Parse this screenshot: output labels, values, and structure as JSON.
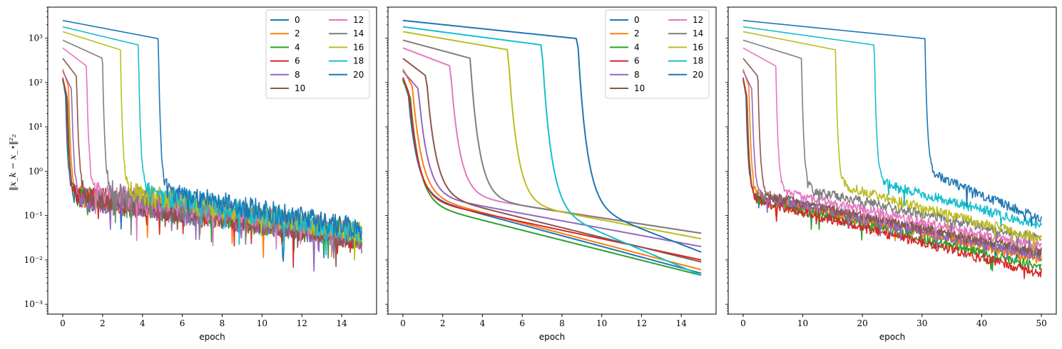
{
  "figure": {
    "ylabel": "‖x_k − x_⋆‖²₂",
    "yscale": "log",
    "ylim": [
      0.0006,
      5000
    ],
    "y_ticks": [
      0.001,
      0.01,
      0.1,
      1,
      10,
      100,
      1000
    ],
    "y_tick_labels": [
      "10⁻³",
      "10⁻²",
      "10⁻¹",
      "10⁰",
      "10¹",
      "10²",
      "10³"
    ]
  },
  "legend_entries": [
    "0",
    "2",
    "4",
    "6",
    "8",
    "10",
    "12",
    "14",
    "16",
    "18",
    "20"
  ],
  "series_colors": [
    "#1f77b4",
    "#ff7f0e",
    "#2ca02c",
    "#d62728",
    "#9467bd",
    "#8c564b",
    "#e377c2",
    "#7f7f7f",
    "#bcbd22",
    "#17becf",
    "#1f77b4"
  ],
  "chart_data": [
    {
      "type": "line",
      "xlabel": "epoch",
      "xlim": [
        -0.75,
        15.75
      ],
      "x_ticks": [
        0,
        2,
        4,
        6,
        8,
        10,
        12,
        14
      ],
      "legend": "top-right",
      "series": [
        {
          "name": "0",
          "initial": 120,
          "drop_epoch": 0.15,
          "final_low": 0.3,
          "final_high": 0.03
        },
        {
          "name": "2",
          "initial": 200,
          "drop_epoch": 0.3,
          "final_low": 0.3,
          "final_high": 0.03
        },
        {
          "name": "4",
          "initial": 110,
          "drop_epoch": 0.25,
          "final_low": 0.25,
          "final_high": 0.03
        },
        {
          "name": "6",
          "initial": 130,
          "drop_epoch": 0.2,
          "final_low": 0.3,
          "final_high": 0.03
        },
        {
          "name": "8",
          "initial": 180,
          "drop_epoch": 0.45,
          "final_low": 0.25,
          "final_high": 0.03
        },
        {
          "name": "10",
          "initial": 350,
          "drop_epoch": 0.7,
          "final_low": 0.3,
          "final_high": 0.03
        },
        {
          "name": "12",
          "initial": 600,
          "drop_epoch": 1.2,
          "final_low": 0.35,
          "final_high": 0.04
        },
        {
          "name": "14",
          "initial": 900,
          "drop_epoch": 2.0,
          "final_low": 0.35,
          "final_high": 0.04
        },
        {
          "name": "16",
          "initial": 1400,
          "drop_epoch": 2.9,
          "final_low": 0.35,
          "final_high": 0.04
        },
        {
          "name": "18",
          "initial": 1800,
          "drop_epoch": 3.8,
          "final_low": 0.35,
          "final_high": 0.04
        },
        {
          "name": "20",
          "initial": 2500,
          "drop_epoch": 4.8,
          "final_low": 0.35,
          "final_high": 0.05
        }
      ]
    },
    {
      "type": "line",
      "xlabel": "epoch",
      "xlim": [
        -0.75,
        15.75
      ],
      "x_ticks": [
        0,
        2,
        4,
        6,
        8,
        10,
        12,
        14
      ],
      "legend": "top-right",
      "series": [
        {
          "name": "0",
          "initial": 120,
          "drop_epoch": 0.3,
          "final_low": 0.3,
          "final_high": 0.005
        },
        {
          "name": "2",
          "initial": 200,
          "drop_epoch": 0.5,
          "final_low": 0.3,
          "final_high": 0.006
        },
        {
          "name": "4",
          "initial": 110,
          "drop_epoch": 0.4,
          "final_low": 0.2,
          "final_high": 0.0045
        },
        {
          "name": "6",
          "initial": 130,
          "drop_epoch": 0.35,
          "final_low": 0.25,
          "final_high": 0.01
        },
        {
          "name": "8",
          "initial": 180,
          "drop_epoch": 0.8,
          "final_low": 0.3,
          "final_high": 0.02
        },
        {
          "name": "10",
          "initial": 350,
          "drop_epoch": 1.2,
          "final_low": 0.3,
          "final_high": 0.009
        },
        {
          "name": "12",
          "initial": 600,
          "drop_epoch": 2.4,
          "final_low": 0.3,
          "final_high": 0.04
        },
        {
          "name": "14",
          "initial": 900,
          "drop_epoch": 3.4,
          "final_low": 0.25,
          "final_high": 0.04
        },
        {
          "name": "16",
          "initial": 1400,
          "drop_epoch": 5.3,
          "final_low": 0.2,
          "final_high": 0.03
        },
        {
          "name": "18",
          "initial": 1800,
          "drop_epoch": 7.0,
          "final_low": 0.15,
          "final_high": 0.0045
        },
        {
          "name": "20",
          "initial": 2500,
          "drop_epoch": 8.8,
          "final_low": 0.18,
          "final_high": 0.015
        }
      ]
    },
    {
      "type": "line",
      "xlabel": "epoch",
      "xlim": [
        -2.5,
        52.5
      ],
      "x_ticks": [
        0,
        10,
        20,
        30,
        40,
        50
      ],
      "legend": "none",
      "series": [
        {
          "name": "0",
          "initial": 120,
          "drop_epoch": 0.5,
          "final_low": 0.3,
          "final_high": 0.012
        },
        {
          "name": "2",
          "initial": 200,
          "drop_epoch": 1.0,
          "final_low": 0.3,
          "final_high": 0.01
        },
        {
          "name": "4",
          "initial": 110,
          "drop_epoch": 0.7,
          "final_low": 0.25,
          "final_high": 0.007
        },
        {
          "name": "6",
          "initial": 130,
          "drop_epoch": 0.6,
          "final_low": 0.25,
          "final_high": 0.005
        },
        {
          "name": "8",
          "initial": 180,
          "drop_epoch": 1.5,
          "final_low": 0.3,
          "final_high": 0.012
        },
        {
          "name": "10",
          "initial": 350,
          "drop_epoch": 2.5,
          "final_low": 0.3,
          "final_high": 0.015
        },
        {
          "name": "12",
          "initial": 600,
          "drop_epoch": 5.5,
          "final_low": 0.35,
          "final_high": 0.02
        },
        {
          "name": "14",
          "initial": 900,
          "drop_epoch": 9.8,
          "final_low": 0.4,
          "final_high": 0.03
        },
        {
          "name": "16",
          "initial": 1400,
          "drop_epoch": 15.5,
          "final_low": 0.5,
          "final_high": 0.03
        },
        {
          "name": "18",
          "initial": 1800,
          "drop_epoch": 22.0,
          "final_low": 0.6,
          "final_high": 0.06
        },
        {
          "name": "20",
          "initial": 2500,
          "drop_epoch": 30.5,
          "final_low": 1.0,
          "final_high": 0.08
        }
      ]
    }
  ]
}
